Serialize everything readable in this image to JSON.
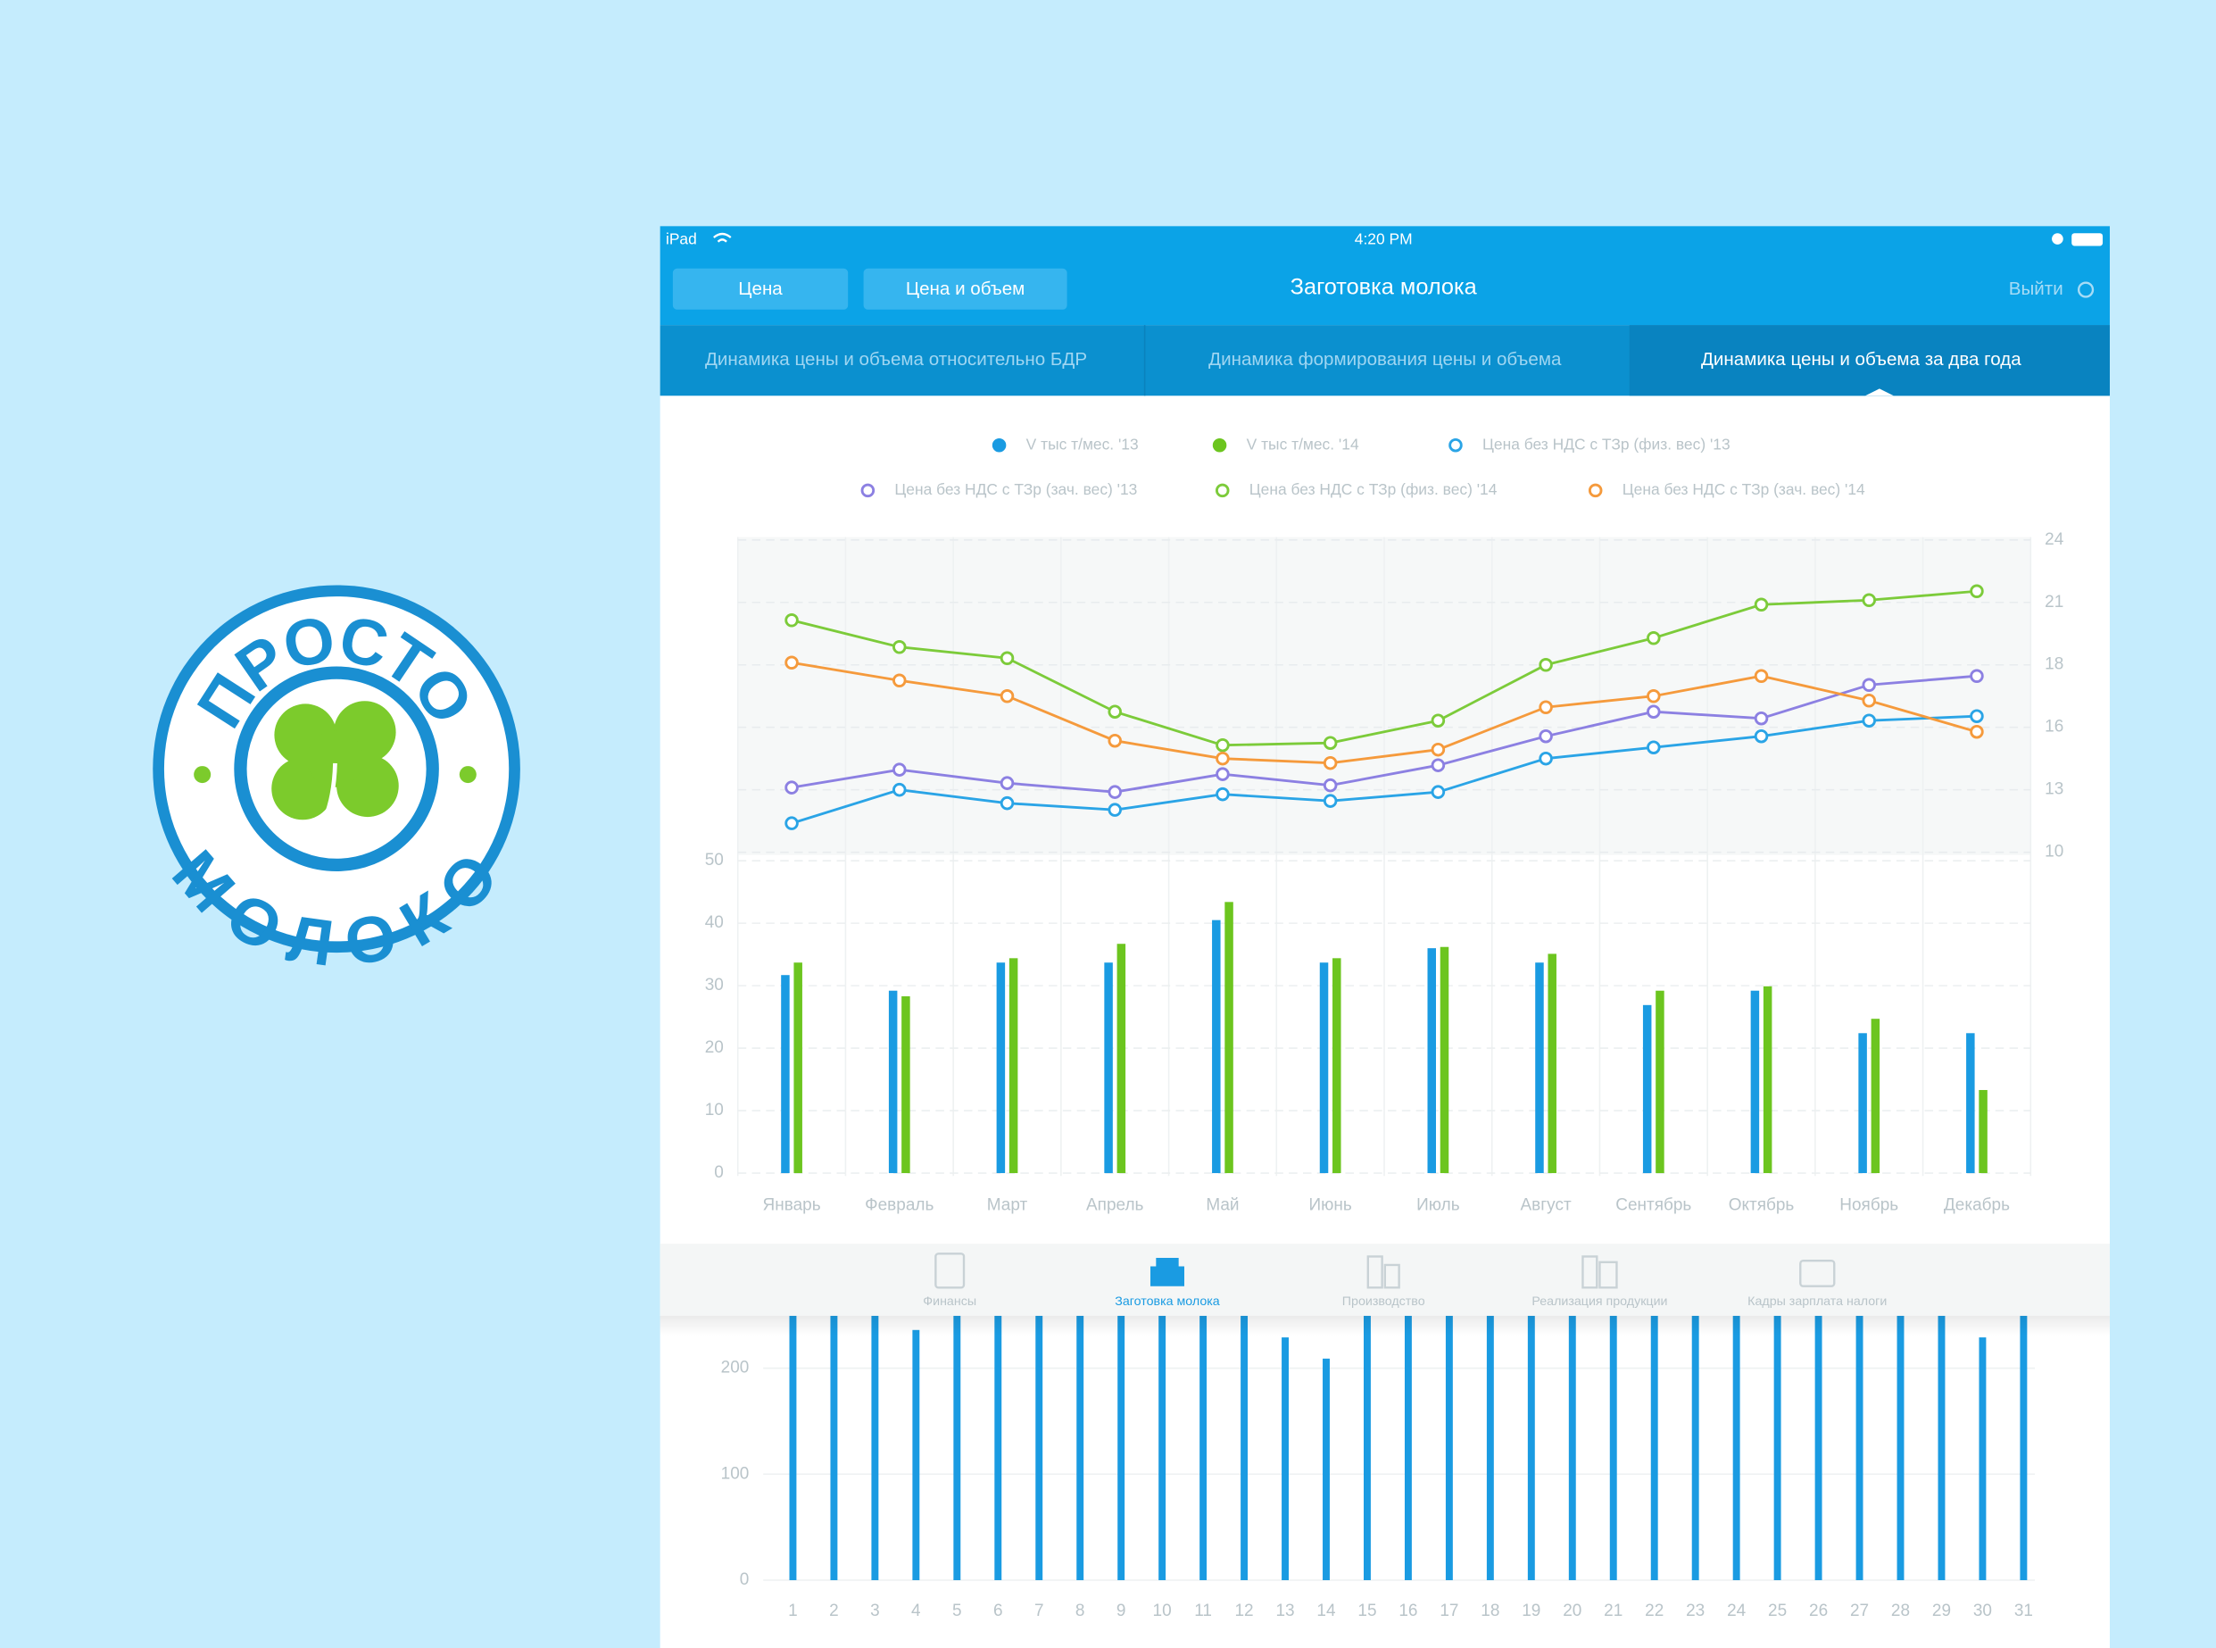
{
  "logo": {
    "top": "ПРОСТО",
    "bottom": "МОЛОКО"
  },
  "status_bar": {
    "device": "iPad",
    "time": "4:20 PM"
  },
  "nav": {
    "buttons": [
      "Цена",
      "Цена и объем"
    ],
    "title": "Заготовка молока",
    "logout": "Выйти"
  },
  "tabs": [
    "Динамика цены и объема относительно БДР",
    "Динамика формирования цены и объема",
    "Динамика цены и объема за два года"
  ],
  "tab_bar": [
    "Финансы",
    "Заготовка молока",
    "Производство",
    "Реализация продукции",
    "Кадры зарплата налоги"
  ],
  "chart_data": [
    {
      "type": "bar",
      "categories": [
        "Январь",
        "Февраль",
        "Март",
        "Апрель",
        "Май",
        "Июнь",
        "Июль",
        "Август",
        "Сентябрь",
        "Октябрь",
        "Ноябрь",
        "Декабрь"
      ],
      "series": [
        {
          "name": "V тыс т/мес. '13",
          "color": "#1a9be2",
          "values": [
            31.7,
            29.2,
            33.7,
            33.7,
            40.5,
            33.7,
            36.0,
            33.7,
            26.9,
            29.2,
            22.4,
            22.4
          ]
        },
        {
          "name": "V тыс т/мес. '14",
          "color": "#6cc51f",
          "values": [
            33.7,
            28.3,
            34.4,
            36.7,
            43.4,
            34.4,
            36.2,
            35.1,
            29.2,
            29.9,
            24.7,
            13.3
          ]
        },
        {
          "name": "Цена без НДС с ТЗр (физ. вес) '13",
          "color": "#2aa4e6",
          "type": "line",
          "axis": "y2",
          "values": [
            11.3,
            12.8,
            12.2,
            11.9,
            12.6,
            12.3,
            12.7,
            14.2,
            14.7,
            15.2,
            15.9,
            16.1
          ]
        },
        {
          "name": "Цена без НДС с ТЗр (зач. вес) '13",
          "color": "#8c80e2",
          "type": "line",
          "axis": "y2",
          "values": [
            12.9,
            13.7,
            13.1,
            12.7,
            13.5,
            13.0,
            13.9,
            15.2,
            16.3,
            16.0,
            17.5,
            17.9
          ]
        },
        {
          "name": "Цена без НДС с ТЗр (физ. вес) '14",
          "color": "#7ccb3a",
          "type": "line",
          "axis": "y2",
          "values": [
            20.4,
            19.2,
            18.7,
            16.3,
            14.8,
            14.9,
            15.9,
            18.4,
            19.6,
            21.1,
            21.3,
            21.7
          ]
        },
        {
          "name": "Цена без НДС с ТЗр (зач. вес) '14",
          "color": "#f59a3c",
          "type": "line",
          "axis": "y2",
          "values": [
            18.5,
            17.7,
            17.0,
            15.0,
            14.2,
            14.0,
            14.6,
            16.5,
            17.0,
            17.9,
            16.8,
            15.4
          ]
        }
      ],
      "ylim": [
        0,
        50
      ],
      "yticks": [
        0,
        10,
        20,
        30,
        40,
        50
      ],
      "y2lim": [
        10,
        24
      ],
      "y2ticks": [
        10,
        {
          "value": 12.8,
          "label": "13"
        },
        {
          "value": 15.6,
          "label": "16"
        },
        {
          "value": 18.4,
          "label": "18"
        },
        {
          "value": 21.2,
          "label": "21"
        },
        24
      ],
      "grid": true
    },
    {
      "type": "bar",
      "categories": [
        "1",
        "2",
        "3",
        "4",
        "5",
        "6",
        "7",
        "8",
        "9",
        "10",
        "11",
        "12",
        "13",
        "14",
        "15",
        "16",
        "17",
        "18",
        "19",
        "20",
        "21",
        "22",
        "23",
        "24",
        "25",
        "26",
        "27",
        "28",
        "29",
        "30",
        "31"
      ],
      "values": [
        250,
        250,
        250,
        236,
        250,
        250,
        250,
        250,
        250,
        250,
        250,
        250,
        229,
        209,
        250,
        250,
        250,
        250,
        250,
        250,
        250,
        250,
        250,
        250,
        250,
        250,
        250,
        250,
        250,
        229,
        250
      ],
      "color": "#1a9be2",
      "ylim": [
        0,
        250
      ],
      "yticks": [
        0,
        100,
        200
      ]
    }
  ]
}
